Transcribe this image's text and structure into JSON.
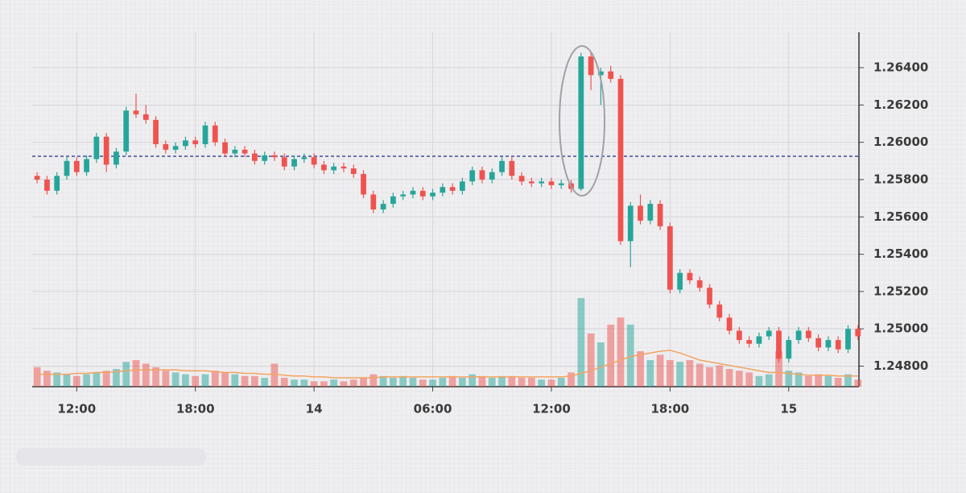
{
  "chart_data": {
    "type": "candlestick",
    "x": [
      10,
      10.5,
      11,
      11.5,
      12,
      12.5,
      13,
      13.5,
      14,
      14.5,
      15,
      15.5,
      16,
      16.5,
      17,
      17.5,
      18,
      18.5,
      19,
      19.5,
      20,
      20.5,
      21,
      21.5,
      22,
      22.5,
      23,
      23.5,
      24,
      24.5,
      25,
      25.5,
      26,
      26.5,
      27,
      27.5,
      28,
      28.5,
      29,
      29.5,
      30,
      30.5,
      31,
      31.5,
      32,
      32.5,
      33,
      33.5,
      34,
      34.5,
      35,
      35.5,
      36,
      36.5,
      37,
      37.5,
      38,
      38.5,
      39,
      39.5,
      40,
      40.5,
      41,
      41.5,
      42,
      42.5,
      43,
      43.5,
      44,
      44.5,
      45,
      45.5,
      46,
      46.5,
      47,
      47.5,
      48,
      48.5,
      49,
      49.5,
      50,
      50.5,
      51,
      51.5
    ],
    "open": [
      1.2582,
      1.258,
      1.2574,
      1.2582,
      1.259,
      1.2584,
      1.2591,
      1.2603,
      1.2588,
      1.2595,
      1.2617,
      1.2615,
      1.2612,
      1.2599,
      1.2596,
      1.2598,
      1.2601,
      1.2599,
      1.2609,
      1.26,
      1.2594,
      1.2596,
      1.2594,
      1.259,
      1.2593,
      1.2592,
      1.2587,
      1.2591,
      1.2592,
      1.2588,
      1.2585,
      1.2587,
      1.2586,
      1.2583,
      1.2572,
      1.2564,
      1.2567,
      1.2571,
      1.2572,
      1.2574,
      1.2571,
      1.2573,
      1.2576,
      1.2574,
      1.2579,
      1.2585,
      1.258,
      1.2584,
      1.259,
      1.2582,
      1.2579,
      1.2578,
      1.2579,
      1.2577,
      1.2578,
      1.2575,
      1.2646,
      1.2636,
      1.2638,
      1.2634,
      1.2547,
      1.2566,
      1.2558,
      1.2567,
      1.2555,
      1.2521,
      1.253,
      1.2526,
      1.2522,
      1.2513,
      1.2506,
      1.2499,
      1.2494,
      1.2492,
      1.2496,
      1.2499,
      1.2484,
      1.2494,
      1.2499,
      1.2495,
      1.249,
      1.2494,
      1.2489,
      1.25
    ],
    "high": [
      1.2584,
      1.2582,
      1.2584,
      1.2592,
      1.2592,
      1.2593,
      1.2605,
      1.2605,
      1.2597,
      1.2619,
      1.2626,
      1.262,
      1.2614,
      1.2601,
      1.26,
      1.2603,
      1.2603,
      1.2611,
      1.2611,
      1.2602,
      1.2598,
      1.2598,
      1.2596,
      1.2595,
      1.2595,
      1.2594,
      1.2593,
      1.2594,
      1.2594,
      1.259,
      1.2589,
      1.2589,
      1.2588,
      1.2585,
      1.2574,
      1.2569,
      1.2573,
      1.2574,
      1.2576,
      1.2576,
      1.2575,
      1.2578,
      1.2578,
      1.2581,
      1.2587,
      1.2587,
      1.2586,
      1.2592,
      1.2592,
      1.2584,
      1.2581,
      1.2581,
      1.2581,
      1.258,
      1.258,
      1.2648,
      1.2648,
      1.264,
      1.2641,
      1.2636,
      1.2568,
      1.2572,
      1.2569,
      1.2569,
      1.2557,
      1.2532,
      1.2532,
      1.2528,
      1.2524,
      1.2515,
      1.2508,
      1.2501,
      1.2496,
      1.2498,
      1.2501,
      1.2501,
      1.2496,
      1.2501,
      1.2501,
      1.2497,
      1.2496,
      1.2496,
      1.2502,
      1.2502
    ],
    "low": [
      1.2578,
      1.2572,
      1.2572,
      1.258,
      1.2582,
      1.2582,
      1.2589,
      1.2584,
      1.2586,
      1.2593,
      1.2613,
      1.261,
      1.2597,
      1.2594,
      1.2594,
      1.2596,
      1.2597,
      1.2597,
      1.2598,
      1.2592,
      1.2592,
      1.2592,
      1.2588,
      1.2588,
      1.259,
      1.2585,
      1.2585,
      1.2589,
      1.2586,
      1.2583,
      1.2583,
      1.2584,
      1.2581,
      1.257,
      1.2562,
      1.2562,
      1.2565,
      1.2569,
      1.257,
      1.2569,
      1.2569,
      1.2571,
      1.2572,
      1.2572,
      1.2577,
      1.2578,
      1.2578,
      1.2582,
      1.258,
      1.2577,
      1.2576,
      1.2576,
      1.2575,
      1.2575,
      1.2573,
      1.2574,
      1.2628,
      1.262,
      1.2632,
      1.2545,
      1.2533,
      1.2556,
      1.2556,
      1.2553,
      1.2519,
      1.2519,
      1.2524,
      1.252,
      1.2511,
      1.2504,
      1.2497,
      1.2492,
      1.249,
      1.249,
      1.2494,
      1.2482,
      1.2482,
      1.2492,
      1.2493,
      1.2488,
      1.2488,
      1.2487,
      1.2487,
      1.2494
    ],
    "close": [
      1.258,
      1.2574,
      1.2582,
      1.259,
      1.2584,
      1.2591,
      1.2603,
      1.2588,
      1.2595,
      1.2617,
      1.2615,
      1.2612,
      1.2599,
      1.2596,
      1.2598,
      1.2601,
      1.2599,
      1.2609,
      1.26,
      1.2594,
      1.2596,
      1.2594,
      1.259,
      1.2593,
      1.2592,
      1.2587,
      1.2591,
      1.2592,
      1.2588,
      1.2585,
      1.2587,
      1.2586,
      1.2583,
      1.2572,
      1.2564,
      1.2567,
      1.2571,
      1.2572,
      1.2574,
      1.2571,
      1.2573,
      1.2576,
      1.2574,
      1.2579,
      1.2585,
      1.258,
      1.2584,
      1.259,
      1.2582,
      1.2579,
      1.2578,
      1.2579,
      1.2577,
      1.2578,
      1.2575,
      1.2646,
      1.2636,
      1.2638,
      1.2634,
      1.2547,
      1.2566,
      1.2558,
      1.2567,
      1.2555,
      1.2521,
      1.253,
      1.2526,
      1.2522,
      1.2513,
      1.2506,
      1.2499,
      1.2494,
      1.2492,
      1.2496,
      1.2499,
      1.2484,
      1.2494,
      1.2499,
      1.2495,
      1.249,
      1.2494,
      1.2489,
      1.25,
      1.2496
    ],
    "volume": [
      22,
      18,
      16,
      14,
      12,
      14,
      16,
      18,
      20,
      28,
      30,
      26,
      22,
      18,
      16,
      14,
      12,
      14,
      18,
      16,
      14,
      12,
      12,
      10,
      26,
      10,
      8,
      8,
      6,
      6,
      8,
      6,
      8,
      10,
      14,
      12,
      10,
      12,
      10,
      8,
      8,
      10,
      12,
      10,
      14,
      12,
      10,
      12,
      12,
      10,
      10,
      8,
      8,
      10,
      16,
      100,
      60,
      50,
      70,
      78,
      70,
      40,
      30,
      36,
      30,
      28,
      30,
      26,
      22,
      24,
      20,
      18,
      16,
      12,
      14,
      40,
      18,
      16,
      12,
      14,
      12,
      10,
      14,
      8
    ],
    "volume_ma": [
      14,
      14,
      14,
      14,
      15,
      15,
      16,
      16,
      17,
      18,
      19,
      19,
      19,
      19,
      19,
      18,
      18,
      18,
      17,
      16,
      16,
      15,
      15,
      14,
      14,
      13,
      12,
      12,
      11,
      11,
      10,
      10,
      10,
      10,
      10,
      11,
      11,
      11,
      11,
      11,
      11,
      11,
      11,
      11,
      11,
      11,
      11,
      11,
      11,
      11,
      11,
      11,
      11,
      11,
      12,
      15,
      18,
      22,
      26,
      30,
      34,
      36,
      38,
      40,
      41,
      38,
      34,
      30,
      28,
      26,
      24,
      22,
      20,
      18,
      16,
      16,
      15,
      14,
      13,
      13,
      13,
      12,
      12,
      12
    ],
    "up_color": "#26a69a",
    "down_color": "#ef5350",
    "volume_ma_color": "#f4a460",
    "reference_line": 1.25925,
    "reference_color": "#3f4a9e",
    "xlim": [
      9.75,
      51.55
    ],
    "xticks": [
      {
        "value": 12,
        "label": "12:00"
      },
      {
        "value": 18,
        "label": "18:00"
      },
      {
        "value": 24,
        "label": "14"
      },
      {
        "value": 30,
        "label": "06:00"
      },
      {
        "value": 36,
        "label": "12:00"
      },
      {
        "value": 42,
        "label": "18:00"
      },
      {
        "value": 48,
        "label": "15"
      }
    ],
    "ylim": [
      1.2469,
      1.2659
    ],
    "yticks": [
      {
        "value": 1.248,
        "label": "1.24800"
      },
      {
        "value": 1.25,
        "label": "1.25000"
      },
      {
        "value": 1.252,
        "label": "1.25200"
      },
      {
        "value": 1.254,
        "label": "1.25400"
      },
      {
        "value": 1.256,
        "label": "1.25600"
      },
      {
        "value": 1.258,
        "label": "1.25800"
      },
      {
        "value": 1.26,
        "label": "1.26000"
      },
      {
        "value": 1.262,
        "label": "1.26200"
      },
      {
        "value": 1.264,
        "label": "1.26400"
      }
    ],
    "grid": true
  }
}
